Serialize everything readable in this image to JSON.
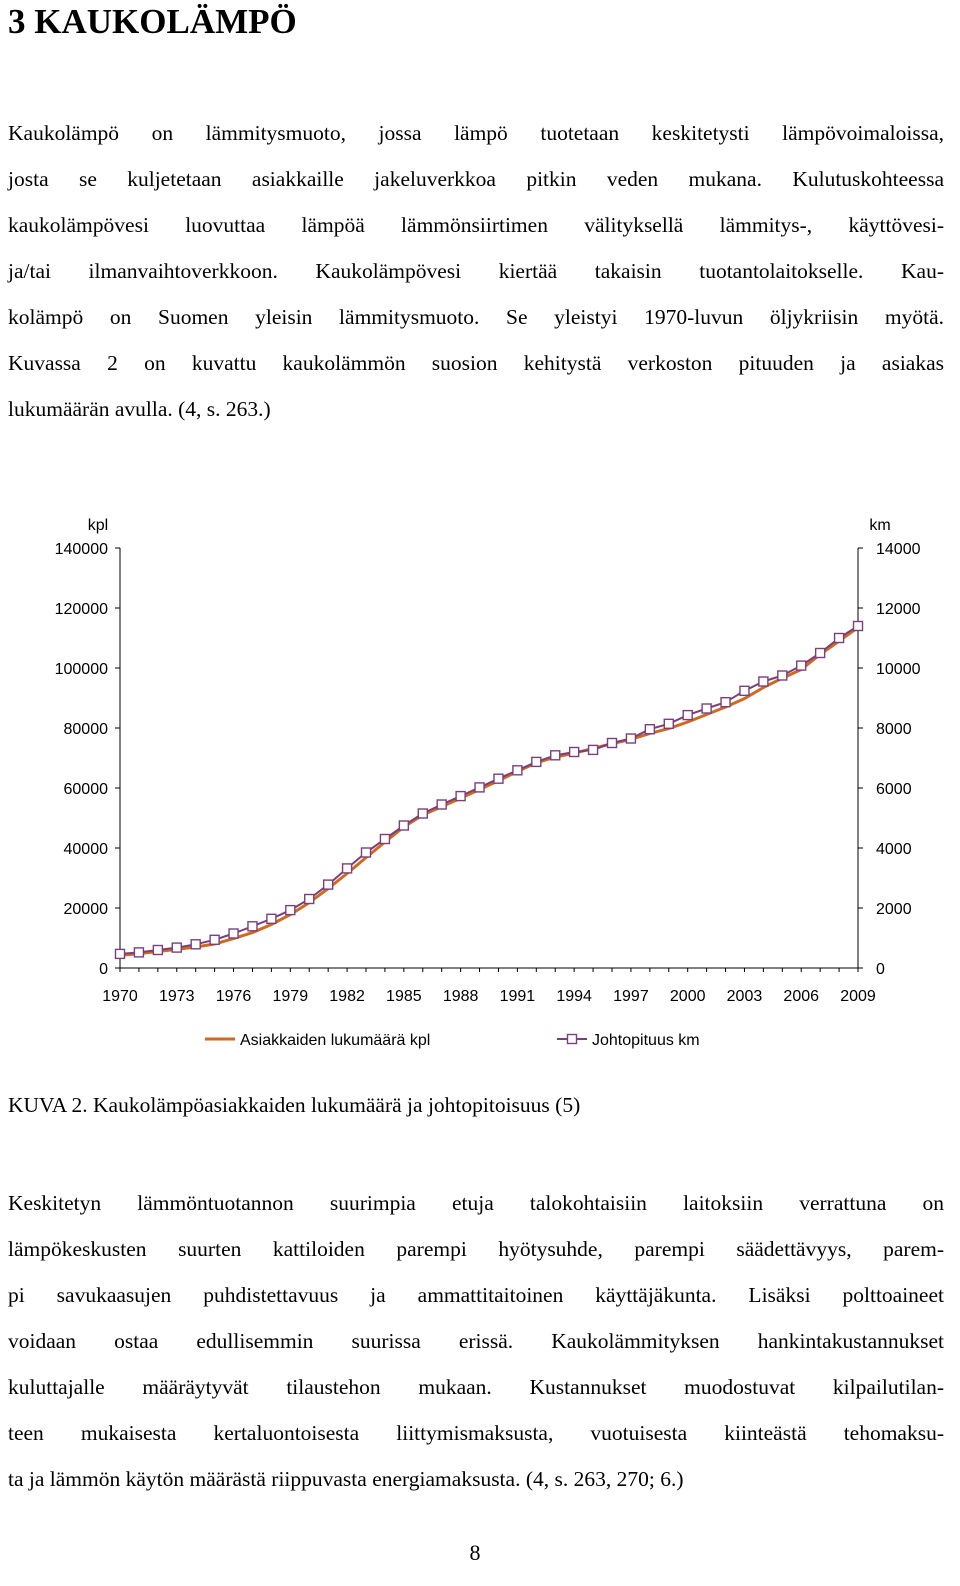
{
  "heading": "3 KAUKOLÄMPÖ",
  "paragraph1": [
    "Kaukolämpö on lämmitysmuoto, jossa lämpö tuotetaan keskitetysti lämpövoimaloissa,",
    "josta se kuljetetaan asiakkaille jakeluverkkoa pitkin veden mukana. Kulutuskohteessa",
    "kaukolämpövesi luovuttaa lämpöä lämmönsiirtimen välityksellä lämmitys-, käyttövesi-",
    "ja/tai ilmanvaihtoverkkoon. Kaukolämpövesi kiertää takaisin tuotantolaitokselle. Kau-",
    "kolämpö on Suomen yleisin lämmitysmuoto. Se yleistyi 1970-luvun öljykriisin myötä.",
    "Kuvassa 2 on kuvattu kaukolämmön suosion kehitystä verkoston pituuden ja asiakas",
    "lukumäärän avulla. (4, s. 263.)"
  ],
  "caption": "KUVA 2. Kaukolämpöasiakkaiden lukumäärä ja johtopitoisuus (5)",
  "paragraph2": [
    "Keskitetyn lämmöntuotannon suurimpia etuja talokohtaisiin laitoksiin verrattuna on",
    "lämpökeskusten suurten kattiloiden parempi hyötysuhde, parempi säädettävyys, parem-",
    "pi savukaasujen puhdistettavuus ja ammattitaitoinen käyttäjäkunta. Lisäksi polttoaineet",
    "voidaan ostaa edullisemmin suurissa erissä. Kaukolämmityksen hankintakustannukset",
    "kuluttajalle määräytyvät tilaustehon mukaan. Kustannukset muodostuvat kilpailutilan-",
    "teen mukaisesta kertaluontoisesta liittymismaksusta, vuotuisesta kiinteästä tehomaksu-",
    "ta ja lämmön käytön määrästä riippuvasta energiamaksusta. (4, s. 263, 270; 6.)"
  ],
  "page_number": "8",
  "chart_data": {
    "type": "line",
    "title": "",
    "xlabel": "",
    "ylabel_left": "kpl",
    "ylabel_right": "km",
    "x_ticks": [
      "1970",
      "1973",
      "1976",
      "1979",
      "1982",
      "1985",
      "1988",
      "1991",
      "1994",
      "1997",
      "2000",
      "2003",
      "2006",
      "2009"
    ],
    "x_range": [
      1970,
      2009
    ],
    "y_left_ticks": [
      "0",
      "20000",
      "40000",
      "60000",
      "80000",
      "100000",
      "120000",
      "140000"
    ],
    "y_left_range": [
      0,
      140000
    ],
    "y_right_ticks": [
      "0",
      "2000",
      "4000",
      "6000",
      "8000",
      "10000",
      "12000",
      "14000"
    ],
    "y_right_range": [
      0,
      14000
    ],
    "grid": false,
    "legend_position": "bottom",
    "series": [
      {
        "name": "Asiakkaiden lukumäärä kpl",
        "axis": "left",
        "color": "#D2691E",
        "marker": "none",
        "x": [
          1970,
          1971,
          1972,
          1973,
          1974,
          1975,
          1976,
          1977,
          1978,
          1979,
          1980,
          1981,
          1982,
          1983,
          1984,
          1985,
          1986,
          1987,
          1988,
          1989,
          1990,
          1991,
          1992,
          1993,
          1994,
          1995,
          1996,
          1997,
          1998,
          1999,
          2000,
          2001,
          2002,
          2003,
          2004,
          2005,
          2006,
          2007,
          2008,
          2009
        ],
        "values": [
          4200,
          4800,
          5500,
          6200,
          7000,
          8000,
          9800,
          11800,
          14500,
          17800,
          21800,
          26500,
          31500,
          36800,
          42000,
          47000,
          51000,
          53800,
          56600,
          59500,
          62400,
          65500,
          68400,
          70300,
          71600,
          73200,
          74800,
          76200,
          78200,
          79800,
          82000,
          84500,
          87000,
          89800,
          93500,
          96600,
          99500,
          104500,
          109000,
          113500
        ]
      },
      {
        "name": "Johtopituus km",
        "axis": "right",
        "color": "#7B3F7F",
        "marker": "square",
        "x": [
          1970,
          1971,
          1972,
          1973,
          1974,
          1975,
          1976,
          1977,
          1978,
          1979,
          1980,
          1981,
          1982,
          1983,
          1984,
          1985,
          1986,
          1987,
          1988,
          1989,
          1990,
          1991,
          1992,
          1993,
          1994,
          1995,
          1996,
          1997,
          1998,
          1999,
          2000,
          2001,
          2002,
          2003,
          2004,
          2005,
          2006,
          2007,
          2008,
          2009
        ],
        "values": [
          470,
          520,
          600,
          680,
          790,
          940,
          1150,
          1390,
          1640,
          1930,
          2300,
          2780,
          3320,
          3850,
          4300,
          4750,
          5150,
          5450,
          5730,
          6020,
          6310,
          6590,
          6870,
          7090,
          7200,
          7270,
          7500,
          7650,
          7960,
          8140,
          8430,
          8650,
          8860,
          9240,
          9550,
          9750,
          10080,
          10500,
          11000,
          11400
        ]
      }
    ]
  }
}
